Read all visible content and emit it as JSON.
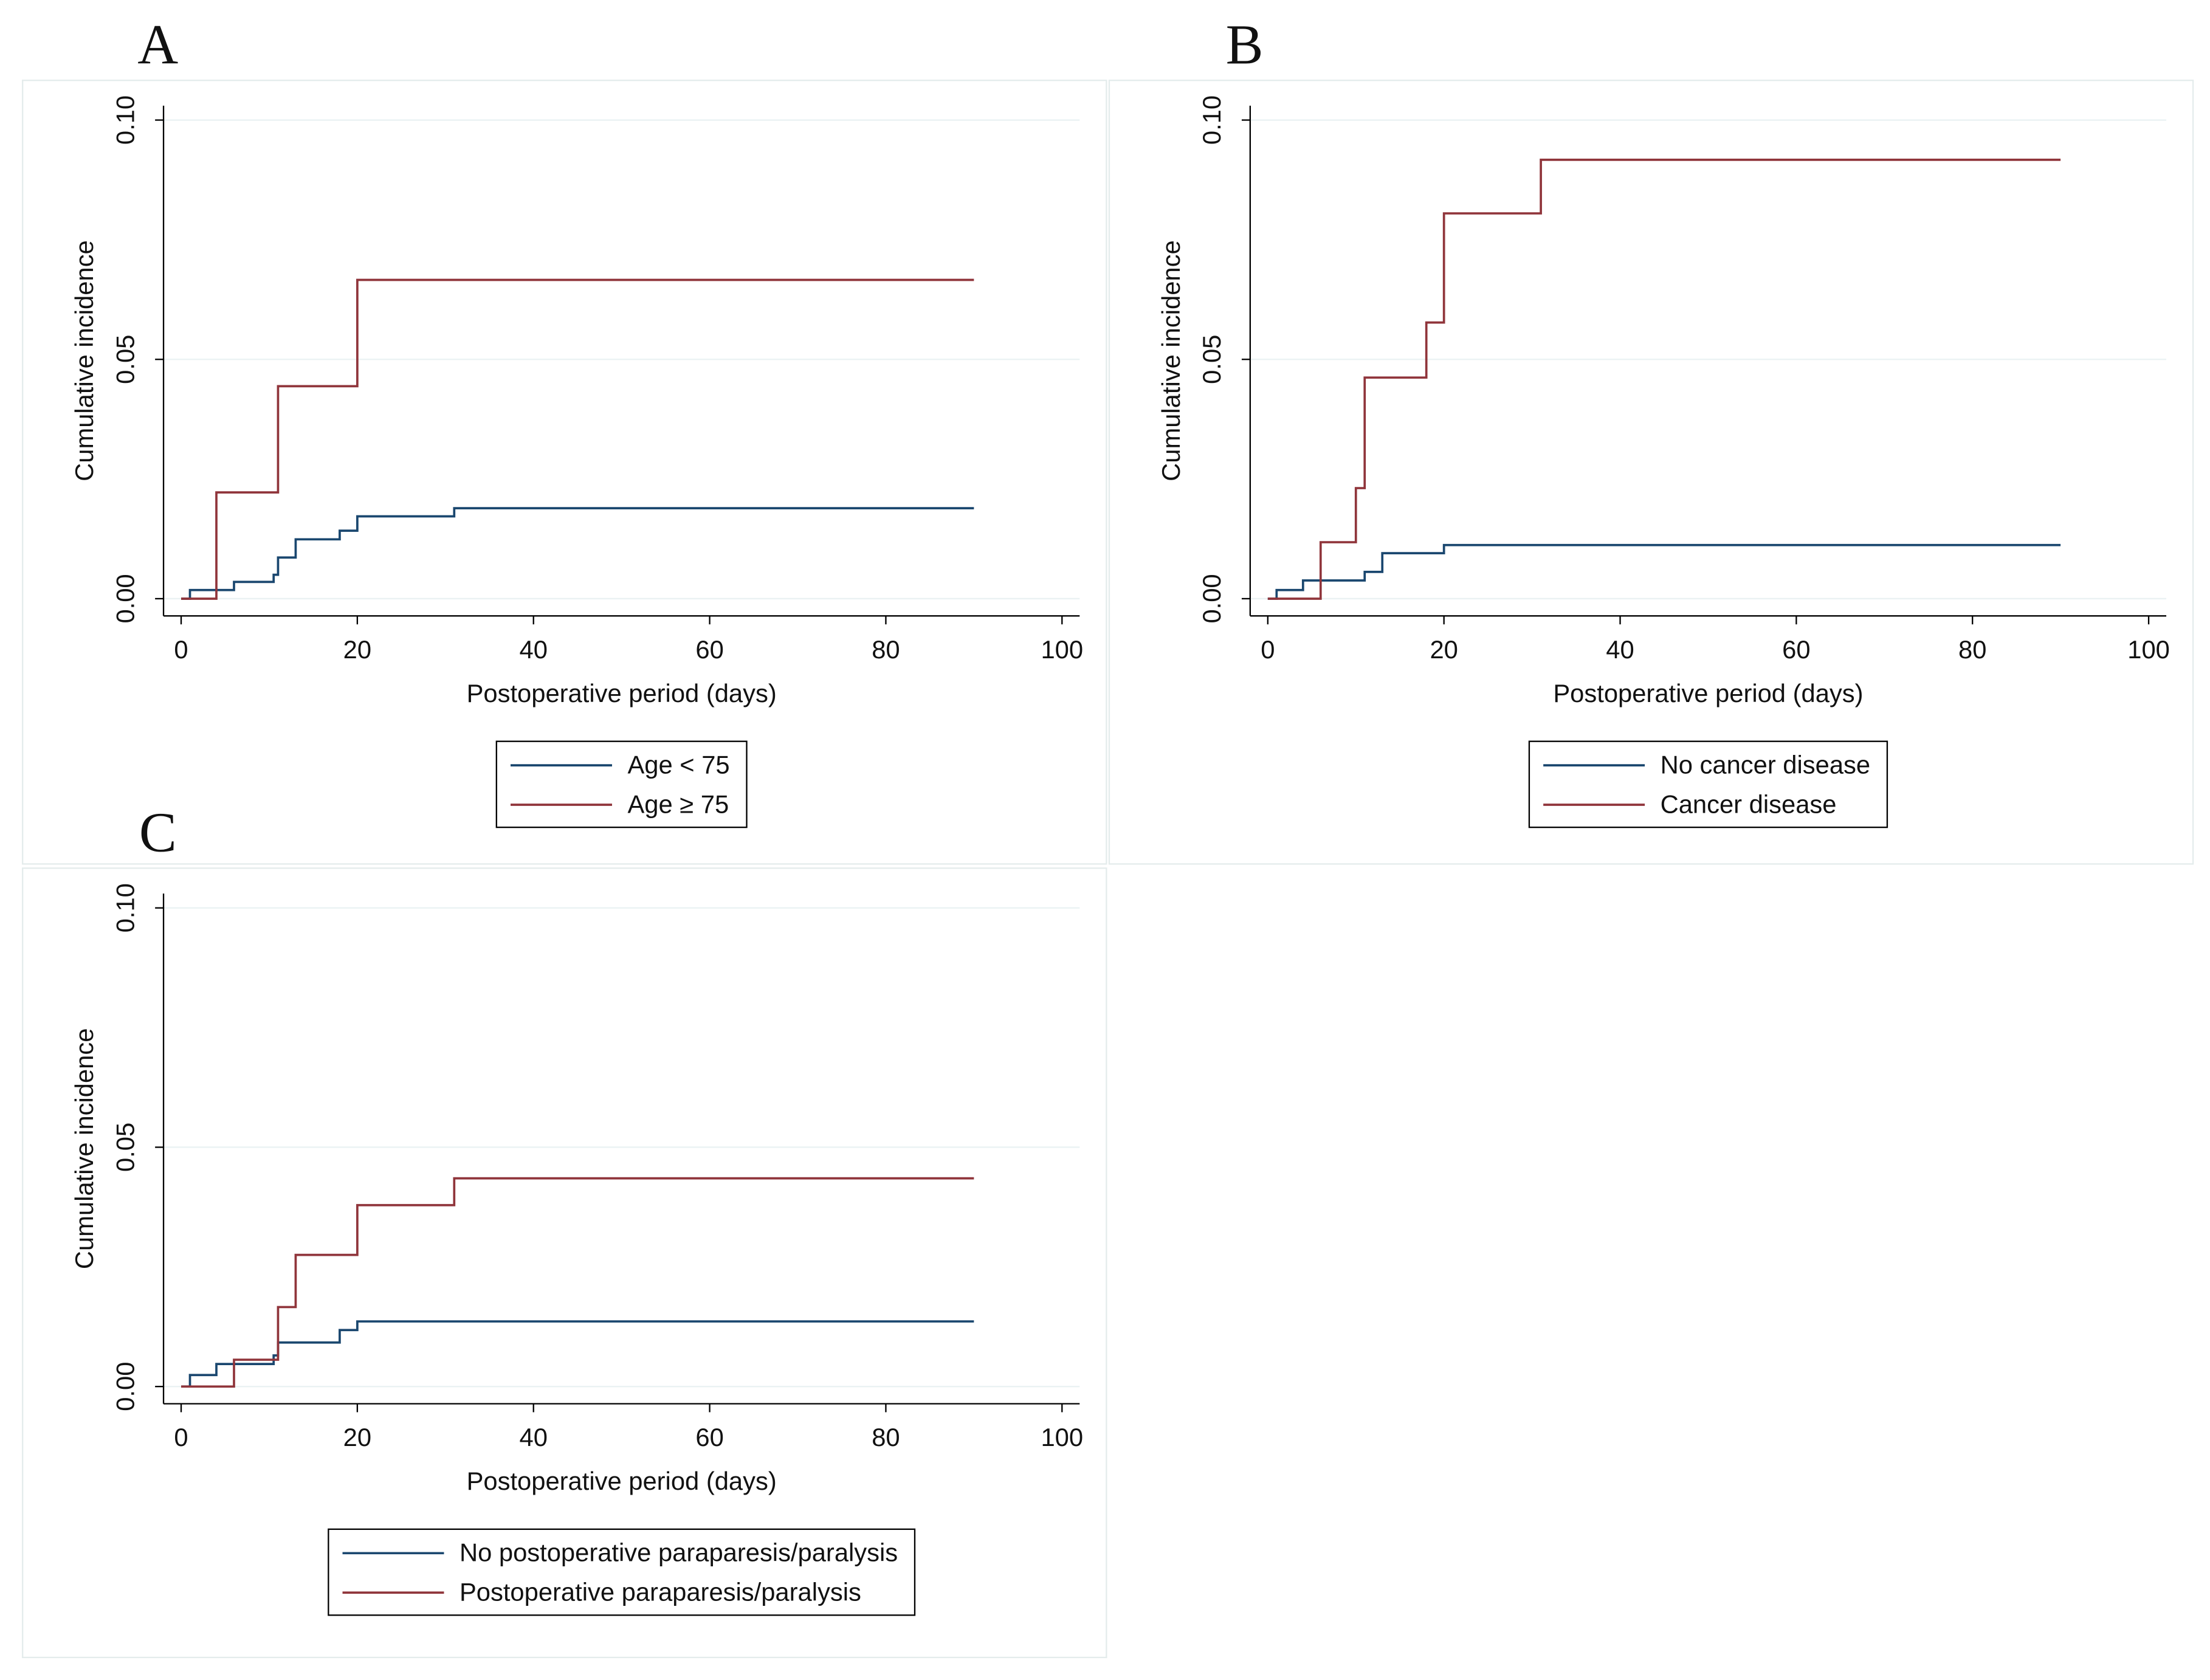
{
  "chart_data": [
    {
      "type": "line",
      "panel_label": "A",
      "x_label": "Postoperative period (days)",
      "y_label": "Cumulative incidence",
      "step": "post",
      "xlim": [
        -2,
        102
      ],
      "xticks": [
        0,
        20,
        40,
        60,
        80,
        100
      ],
      "ylim": [
        -0.0036,
        0.103
      ],
      "yticks": [
        {
          "value": 0,
          "label": "0.00"
        },
        {
          "value": 0.05,
          "label": "0.05"
        },
        {
          "value": 0.1,
          "label": "0.10"
        }
      ],
      "grid": true,
      "series": [
        {
          "name": "Age < 75",
          "color": "#1a476f",
          "x": [
            0,
            1,
            6,
            10.5,
            11,
            13,
            18,
            20,
            31,
            90
          ],
          "values": [
            0,
            0.0018,
            0.0035,
            0.005,
            0.0086,
            0.0124,
            0.0142,
            0.0172,
            0.0189,
            0.0189
          ]
        },
        {
          "name": "Age ≥ 75",
          "color": "#90353b",
          "x": [
            0,
            4,
            11,
            20,
            90
          ],
          "values": [
            0,
            0.0222,
            0.0444,
            0.0666,
            0.0666
          ]
        }
      ]
    },
    {
      "type": "line",
      "panel_label": "B",
      "x_label": "Postoperative period (days)",
      "y_label": "Cumulative incidence",
      "step": "post",
      "xlim": [
        -2,
        102
      ],
      "xticks": [
        0,
        20,
        40,
        60,
        80,
        100
      ],
      "ylim": [
        -0.0036,
        0.103
      ],
      "yticks": [
        {
          "value": 0,
          "label": "0.00"
        },
        {
          "value": 0.05,
          "label": "0.05"
        },
        {
          "value": 0.1,
          "label": "0.10"
        }
      ],
      "grid": true,
      "series": [
        {
          "name": "No cancer disease",
          "color": "#1a476f",
          "x": [
            0,
            1,
            4,
            11,
            13,
            20,
            90
          ],
          "values": [
            0,
            0.0018,
            0.0038,
            0.0056,
            0.0095,
            0.0112,
            0.0112
          ]
        },
        {
          "name": "Cancer disease",
          "color": "#90353b",
          "x": [
            0,
            6,
            10,
            11,
            18,
            20,
            31,
            90
          ],
          "values": [
            0,
            0.0118,
            0.0231,
            0.0462,
            0.0577,
            0.0805,
            0.0917,
            0.0917
          ]
        }
      ]
    },
    {
      "type": "line",
      "panel_label": "C",
      "x_label": "Postoperative period (days)",
      "y_label": "Cumulative incidence",
      "step": "post",
      "xlim": [
        -2,
        102
      ],
      "xticks": [
        0,
        20,
        40,
        60,
        80,
        100
      ],
      "ylim": [
        -0.0036,
        0.103
      ],
      "yticks": [
        {
          "value": 0,
          "label": "0.00"
        },
        {
          "value": 0.05,
          "label": "0.05"
        },
        {
          "value": 0.1,
          "label": "0.10"
        }
      ],
      "grid": true,
      "series": [
        {
          "name": "No postoperative paraparesis/paralysis",
          "color": "#1a476f",
          "x": [
            0,
            1,
            4,
            10.5,
            11,
            18,
            20,
            90
          ],
          "values": [
            0,
            0.0024,
            0.0047,
            0.0065,
            0.0092,
            0.0118,
            0.0136,
            0.0136
          ]
        },
        {
          "name": "Postoperative paraparesis/paralysis",
          "color": "#90353b",
          "x": [
            0,
            6,
            11,
            13,
            20,
            31,
            90
          ],
          "values": [
            0,
            0.0056,
            0.0166,
            0.0275,
            0.0379,
            0.0435,
            0.0435
          ]
        }
      ]
    }
  ]
}
